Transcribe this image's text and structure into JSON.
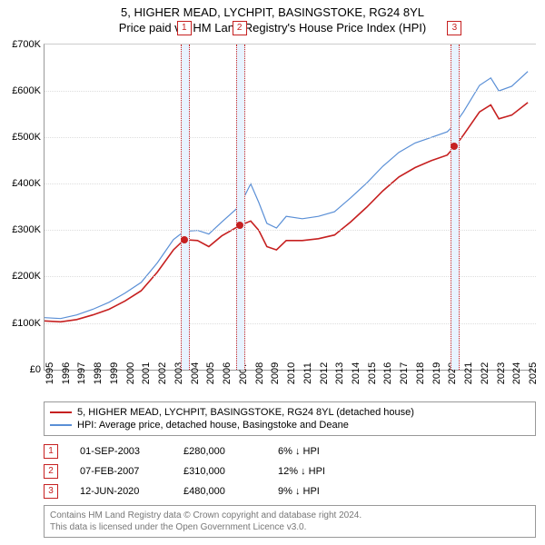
{
  "title": {
    "line1": "5, HIGHER MEAD, LYCHPIT, BASINGSTOKE, RG24 8YL",
    "line2": "Price paid vs. HM Land Registry's House Price Index (HPI)"
  },
  "chart": {
    "type": "line",
    "background_color": "#ffffff",
    "grid_color": "#dddddd",
    "x_start": 1995,
    "x_end": 2025.5,
    "xtick_start": 1995,
    "xtick_end": 2025,
    "xtick_step": 1,
    "x_fontsize": 11,
    "ylim_min": 0,
    "ylim_max": 700000,
    "ytick_step": 100000,
    "ytick_labels": [
      "£0",
      "£100K",
      "£200K",
      "£300K",
      "£400K",
      "£500K",
      "£600K",
      "£700K"
    ],
    "y_fontsize": 11,
    "series": [
      {
        "name": "price_paid",
        "color": "#c62020",
        "width": 1.6,
        "points": [
          [
            1995.0,
            105000
          ],
          [
            1996.0,
            103000
          ],
          [
            1997.0,
            108000
          ],
          [
            1998.0,
            118000
          ],
          [
            1999.0,
            130000
          ],
          [
            2000.0,
            148000
          ],
          [
            2001.0,
            170000
          ],
          [
            2002.0,
            210000
          ],
          [
            2003.0,
            258000
          ],
          [
            2003.67,
            280000
          ],
          [
            2004.5,
            278000
          ],
          [
            2005.2,
            265000
          ],
          [
            2006.0,
            288000
          ],
          [
            2007.1,
            310000
          ],
          [
            2007.8,
            320000
          ],
          [
            2008.3,
            300000
          ],
          [
            2008.8,
            265000
          ],
          [
            2009.4,
            258000
          ],
          [
            2010.0,
            278000
          ],
          [
            2011.0,
            278000
          ],
          [
            2012.0,
            282000
          ],
          [
            2013.0,
            290000
          ],
          [
            2014.0,
            318000
          ],
          [
            2015.0,
            350000
          ],
          [
            2016.0,
            385000
          ],
          [
            2017.0,
            415000
          ],
          [
            2018.0,
            435000
          ],
          [
            2019.0,
            450000
          ],
          [
            2020.0,
            462000
          ],
          [
            2020.45,
            480000
          ],
          [
            2021.0,
            505000
          ],
          [
            2022.0,
            555000
          ],
          [
            2022.7,
            570000
          ],
          [
            2023.2,
            540000
          ],
          [
            2024.0,
            548000
          ],
          [
            2025.0,
            575000
          ]
        ]
      },
      {
        "name": "hpi",
        "color": "#5a8fd6",
        "width": 1.2,
        "points": [
          [
            1995.0,
            112000
          ],
          [
            1996.0,
            110000
          ],
          [
            1997.0,
            118000
          ],
          [
            1998.0,
            130000
          ],
          [
            1999.0,
            145000
          ],
          [
            2000.0,
            165000
          ],
          [
            2001.0,
            188000
          ],
          [
            2002.0,
            230000
          ],
          [
            2003.0,
            280000
          ],
          [
            2003.67,
            298000
          ],
          [
            2004.5,
            300000
          ],
          [
            2005.2,
            292000
          ],
          [
            2006.0,
            318000
          ],
          [
            2007.1,
            352000
          ],
          [
            2007.8,
            400000
          ],
          [
            2008.3,
            360000
          ],
          [
            2008.8,
            315000
          ],
          [
            2009.4,
            305000
          ],
          [
            2010.0,
            330000
          ],
          [
            2011.0,
            325000
          ],
          [
            2012.0,
            330000
          ],
          [
            2013.0,
            340000
          ],
          [
            2014.0,
            370000
          ],
          [
            2015.0,
            402000
          ],
          [
            2016.0,
            438000
          ],
          [
            2017.0,
            468000
          ],
          [
            2018.0,
            488000
          ],
          [
            2019.0,
            500000
          ],
          [
            2020.0,
            512000
          ],
          [
            2020.45,
            528000
          ],
          [
            2021.0,
            555000
          ],
          [
            2022.0,
            612000
          ],
          [
            2022.7,
            628000
          ],
          [
            2023.2,
            600000
          ],
          [
            2024.0,
            610000
          ],
          [
            2025.0,
            642000
          ]
        ]
      }
    ],
    "marker_band_color": "#e8f3ff",
    "marker_border_color": "#c62020",
    "marker_box_bg": "#ffffff",
    "sale_dot_color": "#c62020",
    "sale_dot_size": 8
  },
  "sales": [
    {
      "idx": "1",
      "x": 2003.67,
      "date": "01-SEP-2003",
      "price_val": 280000,
      "price": "£280,000",
      "delta_pct": "6%",
      "delta_dir": "down",
      "delta_suffix": "HPI"
    },
    {
      "idx": "2",
      "x": 2007.1,
      "date": "07-FEB-2007",
      "price_val": 310000,
      "price": "£310,000",
      "delta_pct": "12%",
      "delta_dir": "down",
      "delta_suffix": "HPI"
    },
    {
      "idx": "3",
      "x": 2020.45,
      "date": "12-JUN-2020",
      "price_val": 480000,
      "price": "£480,000",
      "delta_pct": "9%",
      "delta_dir": "down",
      "delta_suffix": "HPI"
    }
  ],
  "legend": {
    "items": [
      {
        "color": "#c62020",
        "label": "5, HIGHER MEAD, LYCHPIT, BASINGSTOKE, RG24 8YL (detached house)"
      },
      {
        "color": "#5a8fd6",
        "label": "HPI: Average price, detached house, Basingstoke and Deane"
      }
    ]
  },
  "footer": {
    "line1": "Contains HM Land Registry data © Crown copyright and database right 2024.",
    "line2": "This data is licensed under the Open Government Licence v3.0."
  }
}
